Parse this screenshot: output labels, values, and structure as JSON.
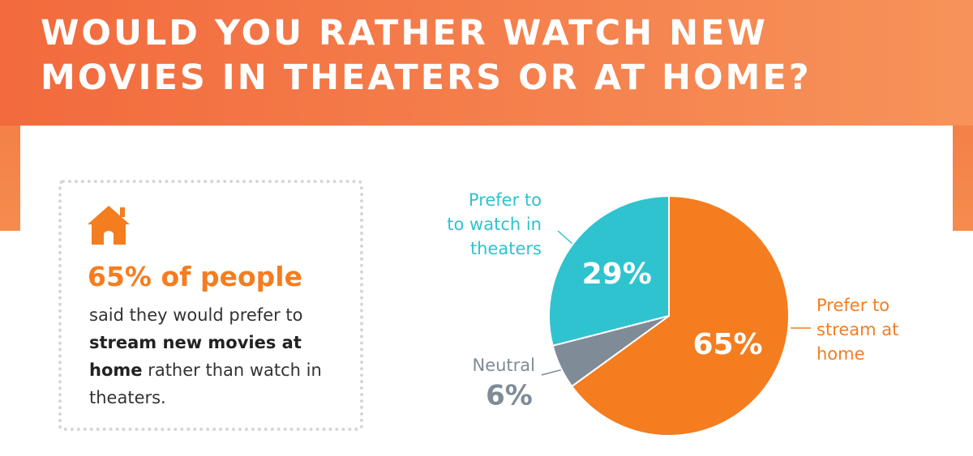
{
  "chart_data": {
    "type": "pie",
    "title": "WOULD YOU RATHER WATCH NEW MOVIES IN THEATERS OR AT HOME?",
    "categories": [
      "Prefer to\nstream at\nhome",
      "Neutral",
      "Prefer to\nto watch in\ntheaters"
    ],
    "values": [
      65,
      6,
      29
    ],
    "value_labels": [
      "65%",
      "6%",
      "29%"
    ],
    "colors": [
      "#f47d20",
      "#7f8b97",
      "#2ec3cf"
    ]
  },
  "callout": {
    "headline": "65% of people",
    "body": [
      {
        "text": "said they would prefer to "
      },
      {
        "text": "stream new movies at home",
        "bold": true
      },
      {
        "text": " rather than watch in theaters."
      }
    ]
  }
}
